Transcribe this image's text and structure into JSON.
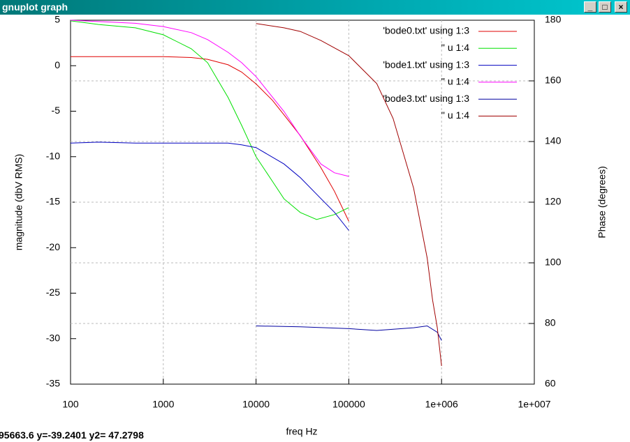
{
  "window": {
    "title": "gnuplot graph",
    "status": "95663.6 y=-39.2401 y2= 47.2798"
  },
  "chart_data": {
    "type": "line",
    "xlabel": "freq Hz",
    "ylabel": "magnitude (dbV RMS)",
    "y2label": "Phase (degrees)",
    "xscale": "log",
    "xlim": [
      100,
      10000000
    ],
    "xticks": [
      100,
      1000,
      10000,
      100000,
      {
        "value": 1000000,
        "label": "1e+006"
      },
      {
        "value": 10000000,
        "label": "1e+007"
      }
    ],
    "ylim": [
      -35,
      5
    ],
    "yticks": [
      -35,
      -30,
      -25,
      -20,
      -15,
      -10,
      -5,
      0,
      5
    ],
    "y2lim": [
      60,
      180
    ],
    "y2ticks": [
      60,
      80,
      100,
      120,
      140,
      160,
      180
    ],
    "grid": [
      "x",
      "y2"
    ],
    "legend": "top-right",
    "series": [
      {
        "name": "'bode0.txt' using 1:3",
        "color": "#e00000",
        "x": [
          100,
          200,
          500,
          1000,
          2000,
          3000,
          5000,
          7000,
          10000,
          15000,
          20000,
          30000,
          50000,
          70000,
          100000
        ],
        "values": [
          1,
          1,
          1,
          1,
          0.9,
          0.7,
          0.1,
          -0.7,
          -2,
          -3.8,
          -5.4,
          -7.7,
          -11.2,
          -13.8,
          -17.1
        ]
      },
      {
        "name": "'' u 1:4",
        "color": "#00e000",
        "axis": "y2",
        "x": [
          100,
          200,
          500,
          1000,
          2000,
          3000,
          5000,
          7000,
          10000,
          15000,
          20000,
          30000,
          45000,
          70000,
          100000
        ],
        "values": [
          179.8,
          178.6,
          177.5,
          175.2,
          170.6,
          166,
          154.5,
          145.3,
          135,
          126.9,
          121.1,
          116.6,
          114.3,
          115.9,
          118.2
        ]
      },
      {
        "name": "'bode1.txt' using 1:3",
        "color": "#0000c0",
        "x": [
          100,
          200,
          500,
          1000,
          2000,
          5000,
          7000,
          10000,
          20000,
          30000,
          50000,
          70000,
          100000
        ],
        "values": [
          -8.5,
          -8.4,
          -8.5,
          -8.5,
          -8.5,
          -8.5,
          -8.7,
          -9,
          -10.8,
          -12.3,
          -14.6,
          -16.1,
          -18.1
        ]
      },
      {
        "name": "'' u 1:4",
        "color": "#ff00ff",
        "axis": "y2",
        "x": [
          100,
          500,
          1000,
          2000,
          3000,
          5000,
          7000,
          10000,
          20000,
          30000,
          50000,
          70000,
          100000
        ],
        "values": [
          180,
          179,
          177.9,
          175.9,
          173.6,
          169.4,
          166,
          161.4,
          149.9,
          141.8,
          132.6,
          129.7,
          128.5
        ]
      },
      {
        "name": "'bode3.txt' using 1:3",
        "color": "#0000a0",
        "x": [
          10000,
          30000,
          100000,
          200000,
          500000,
          700000,
          900000,
          1000000
        ],
        "values": [
          -28.6,
          -28.7,
          -28.9,
          -29.1,
          -28.8,
          -28.6,
          -29.3,
          -30.2
        ]
      },
      {
        "name": "'' u 1:4",
        "color": "#a00000",
        "axis": "y2",
        "x": [
          10000,
          20000,
          30000,
          50000,
          100000,
          200000,
          300000,
          500000,
          700000,
          800000,
          900000,
          1000000
        ],
        "values": [
          178.9,
          177.5,
          176.3,
          173.3,
          168.3,
          159.1,
          147.6,
          124.6,
          101.6,
          87.8,
          78.6,
          66
        ]
      }
    ]
  }
}
